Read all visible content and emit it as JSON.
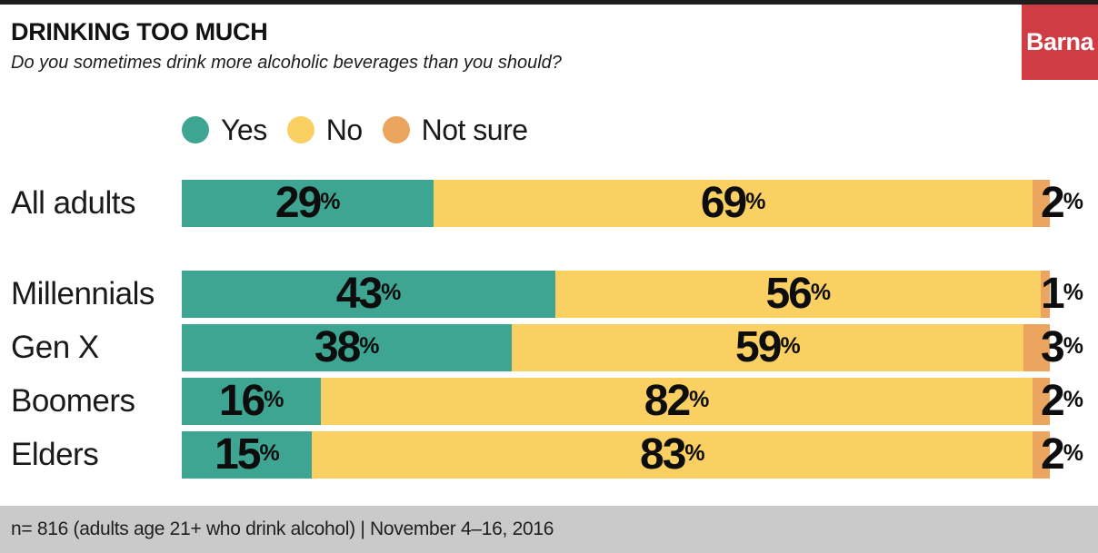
{
  "header": {
    "title": "DRINKING TOO MUCH",
    "subtitle": "Do you sometimes drink more alcoholic beverages than you should?",
    "logo_text": "Barna"
  },
  "chart_data": {
    "type": "bar",
    "variant": "horizontal-stacked",
    "title": "DRINKING TOO MUCH",
    "subtitle": "Do you sometimes drink more alcoholic beverages than you should?",
    "categories": [
      "All adults",
      "Millennials",
      "Gen X",
      "Boomers",
      "Elders"
    ],
    "series": [
      {
        "name": "Yes",
        "color": "#3fa593",
        "values": [
          29,
          43,
          38,
          16,
          15
        ]
      },
      {
        "name": "No",
        "color": "#fbd063",
        "values": [
          69,
          56,
          59,
          82,
          83
        ]
      },
      {
        "name": "Not sure",
        "color": "#eba55f",
        "values": [
          2,
          1,
          3,
          2,
          2
        ]
      }
    ],
    "value_suffix": "%",
    "xlim": [
      0,
      100
    ],
    "grid": false,
    "legend_position": "top"
  },
  "footer": {
    "note": "n= 816 (adults age 21+ who drink alcohol) | November 4–16, 2016"
  },
  "colors": {
    "yes": "#3fa593",
    "no": "#fbd063",
    "not_sure": "#eba55f",
    "logo_red": "#d03c43",
    "top_bar": "#1e1e1e",
    "footer_bg": "#cacaca"
  }
}
